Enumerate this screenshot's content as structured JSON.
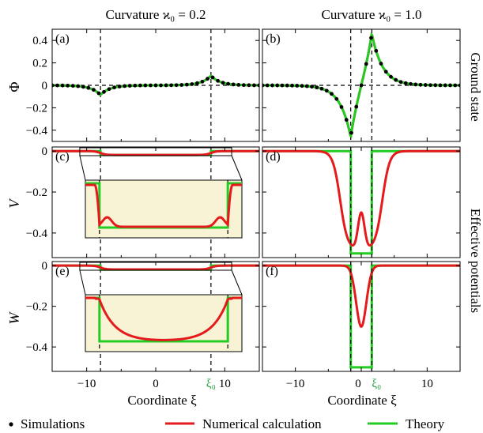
{
  "titles": {
    "left": "Curvature ϰ₀ = 0.2",
    "right": "Curvature ϰ₀ = 1.0"
  },
  "side_labels": {
    "top": "Ground state",
    "bottom": "Effective potentials"
  },
  "axis_labels": {
    "phi": "Φ",
    "v": "V",
    "w": "W",
    "x": "Coordinate ξ"
  },
  "xi0_label": "ξ₀",
  "panel_labels": [
    "(a)",
    "(b)",
    "(c)",
    "(d)",
    "(e)",
    "(f)"
  ],
  "legend": {
    "simulations": "Simulations",
    "numerical": "Numerical calculation",
    "theory": "Theory"
  },
  "colors": {
    "numerical": "#e41a1c",
    "theory": "#22cc22",
    "simulation": "#000000",
    "inset_fill": "#f8f3d4",
    "xi0_label": "#1e9e3a"
  },
  "chart_data": [
    {
      "id": "a",
      "type": "line",
      "title": "Curvature ϰ₀ = 0.2",
      "ylabel": "Φ",
      "xlim": [
        -15,
        15
      ],
      "ylim": [
        -0.5,
        0.5
      ],
      "yticks": [
        -0.4,
        -0.2,
        0,
        0.2,
        0.4
      ],
      "ytick_labels": [
        "−0.4",
        "−0.2",
        "0",
        "0.2",
        "0.4"
      ],
      "xi0": 8.0,
      "peak": 0.085,
      "series": [
        {
          "name": "Numerical calculation",
          "kind": "phi"
        },
        {
          "name": "Theory",
          "kind": "phi"
        },
        {
          "name": "Simulations",
          "kind": "points"
        }
      ]
    },
    {
      "id": "b",
      "type": "line",
      "title": "Curvature ϰ₀ = 1.0",
      "xlim": [
        -15,
        15
      ],
      "ylim": [
        -0.5,
        0.5
      ],
      "xi0": 1.6,
      "peak": 0.46,
      "series": [
        {
          "name": "Numerical calculation",
          "kind": "phi"
        },
        {
          "name": "Theory",
          "kind": "phi"
        },
        {
          "name": "Simulations",
          "kind": "points"
        }
      ]
    },
    {
      "id": "c",
      "type": "line",
      "ylabel": "V",
      "xlim": [
        -15,
        15
      ],
      "ylim": [
        -0.52,
        0.02
      ],
      "yticks": [
        -0.4,
        -0.2,
        0
      ],
      "ytick_labels": [
        "−0.4",
        "−0.2",
        "0"
      ],
      "xi0": 8.0,
      "well_depth": -0.019,
      "inset": {
        "xrange": [
          -11,
          11
        ],
        "yrange": [
          -0.04,
          0.002
        ]
      },
      "series": [
        {
          "name": "Numerical calculation",
          "kind": "V"
        },
        {
          "name": "Theory",
          "kind": "well"
        }
      ]
    },
    {
      "id": "d",
      "type": "line",
      "xlim": [
        -15,
        15
      ],
      "ylim": [
        -0.52,
        0.02
      ],
      "xi0": 1.6,
      "well_depth": -0.5,
      "numerical_min": -0.48,
      "numerical_center": -0.3,
      "series": [
        {
          "name": "Numerical calculation",
          "kind": "V"
        },
        {
          "name": "Theory",
          "kind": "well"
        }
      ]
    },
    {
      "id": "e",
      "type": "line",
      "ylabel": "W",
      "xlim": [
        -15,
        15
      ],
      "ylim": [
        -0.52,
        0.02
      ],
      "yticks": [
        -0.4,
        -0.2,
        0
      ],
      "ytick_labels": [
        "−0.4",
        "−0.2",
        "0"
      ],
      "xi0": 8.0,
      "well_depth": -0.02,
      "series": [
        {
          "name": "Numerical calculation",
          "kind": "W"
        },
        {
          "name": "Theory",
          "kind": "well"
        }
      ]
    },
    {
      "id": "f",
      "type": "line",
      "xlabel": "Coordinate ξ",
      "xlim": [
        -15,
        15
      ],
      "ylim": [
        -0.52,
        0.02
      ],
      "xticks": [
        -10,
        0,
        10
      ],
      "xtick_labels": [
        "−10",
        "0",
        "10"
      ],
      "xi0": 1.6,
      "well_depth": -0.5,
      "numerical_min": -0.3,
      "series": [
        {
          "name": "Numerical calculation",
          "kind": "W"
        },
        {
          "name": "Theory",
          "kind": "well"
        }
      ]
    }
  ],
  "bottom_xticks": {
    "left": [
      "−10",
      "0",
      "10"
    ],
    "right": [
      "−10",
      "0",
      "10"
    ]
  }
}
